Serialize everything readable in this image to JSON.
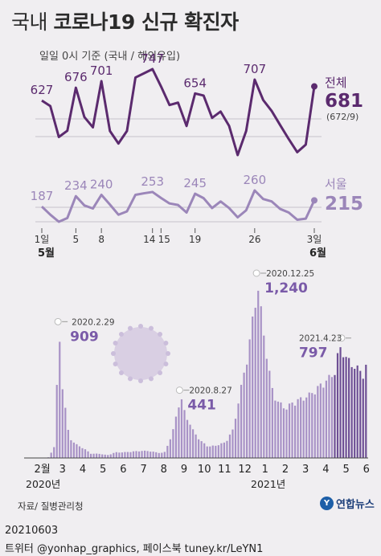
{
  "title": {
    "light": "국내",
    "bold": "코로나19 신규 확진자"
  },
  "subtitle": "일일 0시 기준 (국내 / 해외유입)",
  "colors": {
    "national": "#5b2a6e",
    "seoul": "#9b86b9",
    "bars": "#a892c6",
    "bars_dark": "#6e4f95",
    "grid": "#b9b4bd"
  },
  "chart_data": [
    {
      "type": "line",
      "name": "daily-may-2021",
      "x": [
        1,
        2,
        3,
        4,
        5,
        6,
        7,
        8,
        9,
        10,
        11,
        12,
        13,
        14,
        15,
        16,
        17,
        18,
        19,
        20,
        21,
        22,
        23,
        24,
        25,
        26,
        27,
        28,
        29,
        30,
        31,
        32,
        33
      ],
      "x_ticks": [
        "1일",
        "5",
        "8",
        "14",
        "15",
        "19",
        "26",
        "3일"
      ],
      "x_tick_positions": [
        1,
        5,
        8,
        14,
        15,
        19,
        26,
        33
      ],
      "month_labels": {
        "start": "5월",
        "end": "6월"
      },
      "series": [
        {
          "name": "전체",
          "values": [
            627,
            606,
            488,
            512,
            676,
            564,
            525,
            701,
            511,
            463,
            511,
            715,
            731,
            747,
            681,
            610,
            619,
            530,
            654,
            646,
            561,
            585,
            530,
            419,
            511,
            707,
            629,
            587,
            533,
            480,
            430,
            459,
            681
          ],
          "labels": [
            [
              "627",
              1
            ],
            [
              "676",
              5
            ],
            [
              "701",
              8
            ],
            [
              "747",
              14
            ],
            [
              "654",
              19
            ],
            [
              "707",
              26
            ]
          ],
          "last_value": "681",
          "last_detail": "(672/9)"
        },
        {
          "name": "서울",
          "values": [
            187,
            150,
            118,
            135,
            234,
            192,
            178,
            240,
            196,
            150,
            165,
            240,
            247,
            253,
            226,
            201,
            194,
            160,
            245,
            225,
            180,
            210,
            180,
            138,
            170,
            260,
            221,
            210,
            176,
            160,
            127,
            132,
            215
          ],
          "labels": [
            [
              "187",
              1
            ],
            [
              "234",
              5
            ],
            [
              "240",
              8
            ],
            [
              "253",
              14
            ],
            [
              "245",
              19
            ],
            [
              "260",
              26
            ]
          ],
          "last_value": "215"
        }
      ]
    },
    {
      "type": "bar",
      "name": "daily-since-2020",
      "x_ticks": [
        "2월",
        "3",
        "4",
        "5",
        "6",
        "7",
        "8",
        "9",
        "10",
        "11",
        "12",
        "1",
        "2",
        "3",
        "4",
        "5",
        "6"
      ],
      "year_labels": [
        "2020년",
        "2021년"
      ],
      "annotations": [
        {
          "date": "2020.2.29",
          "value": "909"
        },
        {
          "date": "2020.8.27",
          "value": "441"
        },
        {
          "date": "2020.12.25",
          "value": "1,240"
        },
        {
          "date": "2021.4.23",
          "value": "797"
        }
      ],
      "profile": [
        [
          0,
          0
        ],
        [
          0.3,
          5
        ],
        [
          0.6,
          90
        ],
        [
          0.8,
          909
        ],
        [
          1.0,
          480
        ],
        [
          1.3,
          150
        ],
        [
          1.6,
          100
        ],
        [
          2.0,
          70
        ],
        [
          2.4,
          30
        ],
        [
          2.8,
          30
        ],
        [
          3.2,
          20
        ],
        [
          3.6,
          40
        ],
        [
          4.0,
          40
        ],
        [
          4.4,
          45
        ],
        [
          4.8,
          50
        ],
        [
          5.2,
          50
        ],
        [
          5.6,
          40
        ],
        [
          6.0,
          35
        ],
        [
          6.4,
          170
        ],
        [
          6.8,
          441
        ],
        [
          7.0,
          330
        ],
        [
          7.4,
          200
        ],
        [
          7.8,
          120
        ],
        [
          8.2,
          80
        ],
        [
          8.6,
          90
        ],
        [
          9.0,
          110
        ],
        [
          9.4,
          200
        ],
        [
          9.8,
          500
        ],
        [
          10.2,
          800
        ],
        [
          10.6,
          1240
        ],
        [
          10.9,
          900
        ],
        [
          11.1,
          700
        ],
        [
          11.3,
          500
        ],
        [
          11.6,
          400
        ],
        [
          12.0,
          350
        ],
        [
          12.4,
          400
        ],
        [
          12.8,
          420
        ],
        [
          13.2,
          450
        ],
        [
          13.6,
          500
        ],
        [
          14.0,
          550
        ],
        [
          14.4,
          600
        ],
        [
          14.6,
          750
        ],
        [
          14.8,
          797
        ],
        [
          15.0,
          700
        ],
        [
          15.4,
          650
        ],
        [
          15.8,
          600
        ],
        [
          16.0,
          660
        ]
      ]
    }
  ],
  "source": "자료/ 질병관리청",
  "logo": "연합뉴스",
  "footer": {
    "date": "20210603",
    "social": "트위터 @yonhap_graphics, 페이스북 tuney.kr/LeYN1"
  }
}
